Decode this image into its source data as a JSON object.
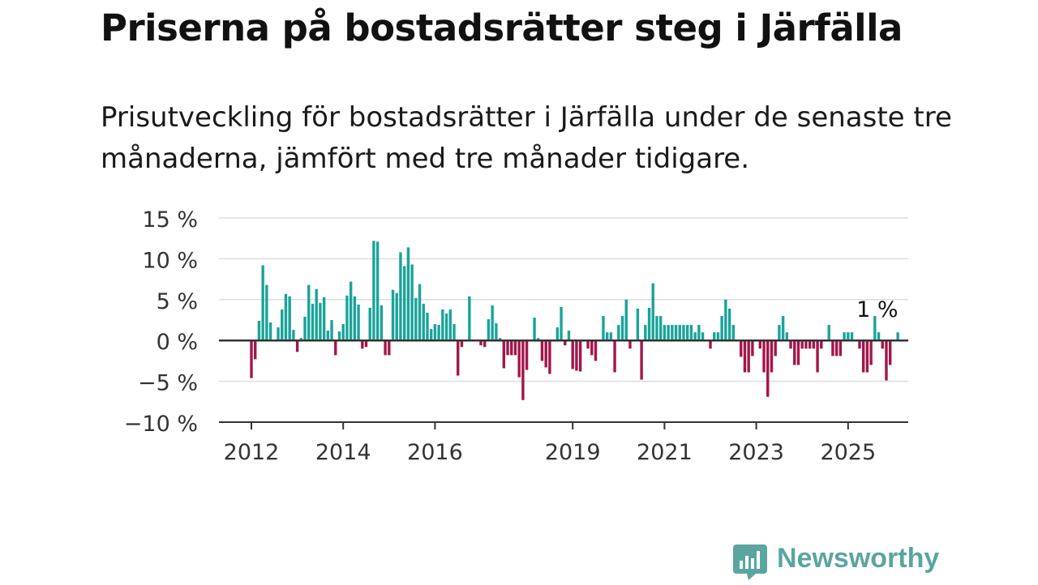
{
  "title": "Priserna på bostadsrätter steg i Järfälla",
  "subtitle": "Prisutveckling för bostadsrätter i Järfälla under de senaste tre månaderna, jämfört med tre månader tidigare.",
  "brand": {
    "name": "Newsworthy",
    "logo_icon": "newsworthy-logo-icon",
    "color": "#5aa5a0"
  },
  "colors": {
    "positive": "#1aa39a",
    "negative": "#a4154b",
    "grid": "#dddddd",
    "axis": "#333333"
  },
  "chart_data": {
    "type": "bar",
    "title": "",
    "xlabel": "",
    "ylabel": "",
    "ylim": [
      -10,
      15
    ],
    "yticks": [
      -10,
      -5,
      0,
      5,
      10,
      15
    ],
    "ytick_labels": [
      "−10 %",
      "−5 %",
      "0 %",
      "5 %",
      "10 %",
      "15 %"
    ],
    "xticks": [
      2012,
      2014,
      2016,
      2019,
      2021,
      2023,
      2025
    ],
    "xtick_labels": [
      "2012",
      "2014",
      "2016",
      "2019",
      "2021",
      "2023",
      "2025"
    ],
    "x_start": "2012-01",
    "x_end": "2025-08",
    "grid": true,
    "annotation": {
      "text": "1 %",
      "x": "2025-08",
      "y": 1
    },
    "values": [
      -4.6,
      -2.3,
      2.4,
      9.2,
      6.8,
      2.2,
      0.0,
      1.6,
      3.8,
      5.7,
      5.4,
      1.3,
      -1.4,
      0.3,
      2.9,
      6.8,
      4.5,
      6.3,
      4.6,
      5.3,
      1.2,
      2.5,
      -1.8,
      1.1,
      2.0,
      5.5,
      7.2,
      5.4,
      4.4,
      -1.0,
      -0.8,
      4.0,
      12.2,
      12.1,
      4.3,
      -1.8,
      -1.8,
      6.2,
      5.8,
      10.8,
      9.1,
      11.4,
      9.3,
      5.2,
      6.9,
      4.5,
      3.4,
      1.4,
      2.0,
      1.9,
      3.8,
      3.3,
      3.8,
      2.0,
      -4.3,
      -0.8,
      0.0,
      5.4,
      0.0,
      0.0,
      -0.6,
      -0.8,
      2.6,
      4.3,
      2.1,
      0.3,
      -3.4,
      -1.8,
      -1.8,
      -1.8,
      -4.5,
      -7.3,
      -3.6,
      0.0,
      2.8,
      0.3,
      -2.5,
      -3.3,
      -4.1,
      0.0,
      1.6,
      4.1,
      -0.6,
      1.2,
      -3.5,
      -3.7,
      -3.8,
      0.0,
      -1.0,
      -1.8,
      -2.5,
      0.0,
      3.0,
      1.0,
      1.0,
      -3.9,
      1.9,
      3.0,
      5.0,
      -1.0,
      0.0,
      3.9,
      -4.8,
      1.9,
      4.0,
      7.0,
      3.0,
      3.0,
      1.9,
      1.9,
      1.9,
      1.9,
      1.9,
      1.9,
      1.9,
      1.9,
      1.0,
      1.9,
      1.0,
      0.0,
      -1.0,
      1.0,
      1.0,
      3.0,
      5.0,
      3.9,
      1.9,
      0.0,
      -2.0,
      -3.9,
      -3.9,
      -1.9,
      0.0,
      -1.0,
      -3.9,
      -6.9,
      -3.9,
      -1.9,
      1.9,
      3.0,
      1.0,
      -1.0,
      -3.0,
      -3.0,
      -1.0,
      -1.0,
      -1.0,
      -1.0,
      -3.9,
      -1.0,
      0.0,
      1.9,
      -1.9,
      -1.9,
      -1.9,
      1.0,
      1.0,
      1.0,
      0.0,
      -1.0,
      -3.9,
      -3.9,
      -3.0,
      3.0,
      1.0,
      -1.0,
      -4.9,
      -3.0,
      0.0,
      1.0
    ]
  }
}
